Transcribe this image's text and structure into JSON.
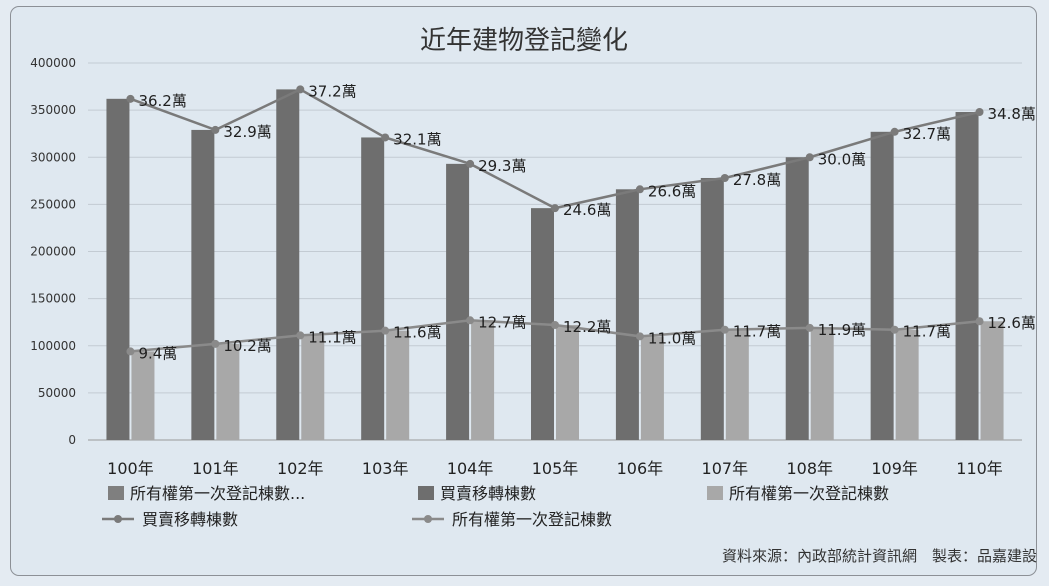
{
  "chart_data": {
    "type": "bar",
    "title": "近年建物登記變化",
    "categories": [
      "100年",
      "101年",
      "102年",
      "103年",
      "104年",
      "105年",
      "106年",
      "107年",
      "108年",
      "109年",
      "110年"
    ],
    "ylim": [
      0,
      400000
    ],
    "yticks": [
      0,
      50000,
      100000,
      150000,
      200000,
      250000,
      300000,
      350000,
      400000
    ],
    "grid": true,
    "legend_position": "bottom",
    "series": [
      {
        "name": "所有權第一次登記棟數...",
        "kind": "bar",
        "color": "#7f7f7f",
        "values": [
          null,
          null,
          null,
          null,
          null,
          null,
          null,
          null,
          null,
          null,
          null
        ]
      },
      {
        "name": "買賣移轉棟數",
        "kind": "bar",
        "color": "#6e6e6e",
        "values": [
          362000,
          329000,
          372000,
          321000,
          293000,
          246000,
          266000,
          278000,
          300000,
          327000,
          348000
        ]
      },
      {
        "name": "所有權第一次登記棟數",
        "kind": "bar",
        "color": "#a8a8a8",
        "values": [
          94000,
          102000,
          111000,
          116000,
          127000,
          122000,
          110000,
          117000,
          119000,
          117000,
          126000
        ]
      },
      {
        "name": "買賣移轉棟數",
        "kind": "line",
        "color": "#7a7a7a",
        "values": [
          362000,
          329000,
          372000,
          321000,
          293000,
          246000,
          266000,
          278000,
          300000,
          327000,
          348000
        ],
        "labels": [
          "36.2萬",
          "32.9萬",
          "37.2萬",
          "32.1萬",
          "29.3萬",
          "24.6萬",
          "26.6萬",
          "27.8萬",
          "30.0萬",
          "32.7萬",
          "34.8萬"
        ]
      },
      {
        "name": "所有權第一次登記棟數",
        "kind": "line",
        "color": "#8a8a8a",
        "values": [
          94000,
          102000,
          111000,
          116000,
          127000,
          122000,
          110000,
          117000,
          119000,
          117000,
          126000
        ],
        "labels": [
          "9.4萬",
          "10.2萬",
          "11.1萬",
          "11.6萬",
          "12.7萬",
          "12.2萬",
          "11.0萬",
          "11.7萬",
          "11.9萬",
          "11.7萬",
          "12.6萬"
        ]
      }
    ]
  },
  "source_note": "資料來源：內政部統計資訊網　製表：品嘉建設"
}
